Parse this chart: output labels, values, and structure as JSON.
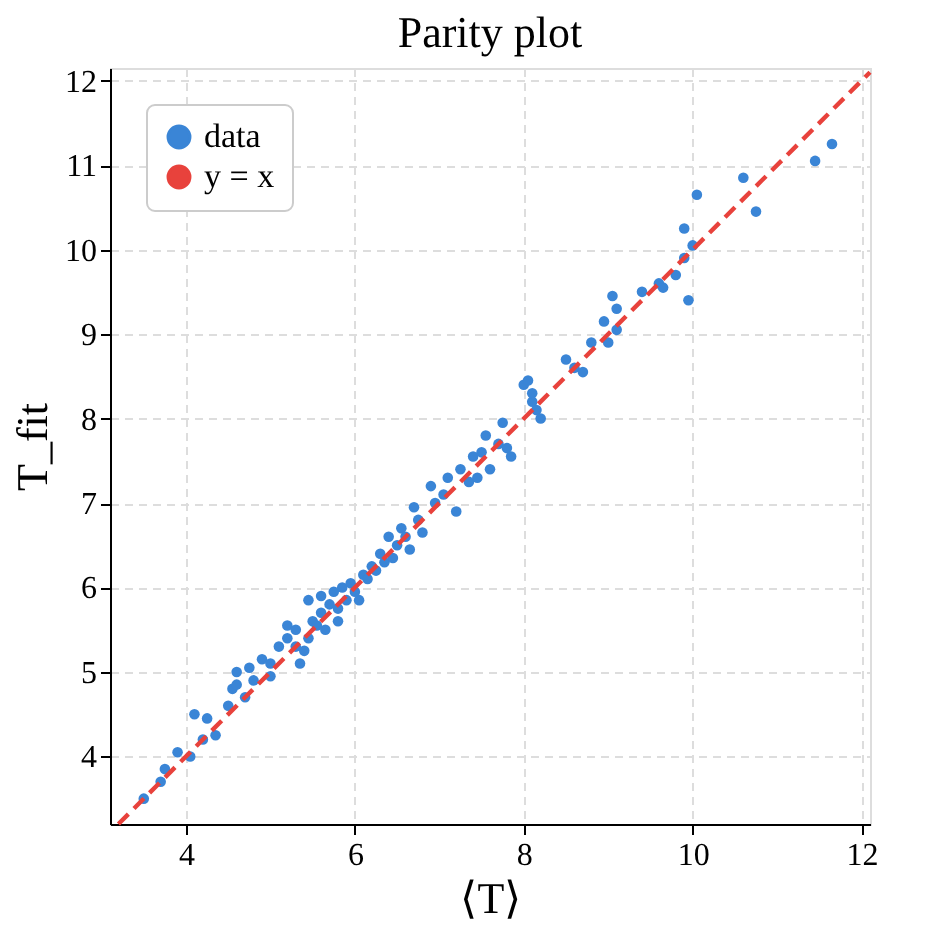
{
  "chart_data": {
    "type": "scatter",
    "title": "Parity plot",
    "xlabel": "⟨T⟩",
    "ylabel": "T_fit",
    "xlim": [
      3.1,
      12.1
    ],
    "ylim": [
      3.2,
      12.15
    ],
    "xticks": [
      4,
      6,
      8,
      10,
      12
    ],
    "yticks": [
      4,
      5,
      6,
      7,
      8,
      9,
      10,
      11,
      12
    ],
    "grid": true,
    "legend": "top left",
    "series": [
      {
        "name": "data",
        "marker": "circle",
        "color": "#3a85d6",
        "x": [
          3.5,
          3.7,
          3.75,
          3.9,
          4.05,
          4.1,
          4.25,
          4.2,
          4.35,
          4.5,
          4.55,
          4.6,
          4.7,
          4.75,
          4.6,
          4.8,
          4.9,
          5.0,
          5.0,
          5.1,
          5.2,
          5.2,
          5.3,
          5.3,
          5.35,
          5.4,
          5.45,
          5.45,
          5.5,
          5.55,
          5.6,
          5.6,
          5.65,
          5.7,
          5.75,
          5.8,
          5.8,
          5.85,
          5.9,
          5.95,
          6.0,
          6.05,
          6.1,
          6.15,
          6.2,
          6.25,
          6.3,
          6.35,
          6.4,
          6.45,
          6.5,
          6.55,
          6.6,
          6.65,
          6.7,
          6.75,
          6.8,
          6.9,
          6.95,
          7.05,
          7.1,
          7.2,
          7.25,
          7.35,
          7.4,
          7.45,
          7.5,
          7.55,
          7.6,
          7.7,
          7.75,
          7.8,
          7.85,
          8.0,
          8.05,
          8.1,
          8.15,
          8.2,
          8.1,
          8.5,
          8.6,
          8.7,
          8.8,
          8.95,
          9.0,
          9.05,
          9.1,
          9.1,
          9.4,
          9.6,
          9.65,
          9.8,
          9.9,
          9.95,
          10.0,
          9.9,
          10.05,
          10.6,
          10.75,
          11.45,
          11.65
        ],
        "values": [
          3.5,
          3.7,
          3.85,
          4.05,
          4.0,
          4.5,
          4.45,
          4.2,
          4.25,
          4.6,
          4.8,
          4.85,
          4.7,
          5.05,
          5.0,
          4.9,
          5.15,
          5.1,
          4.95,
          5.3,
          5.55,
          5.4,
          5.3,
          5.5,
          5.1,
          5.25,
          5.4,
          5.85,
          5.6,
          5.55,
          5.7,
          5.9,
          5.5,
          5.8,
          5.95,
          5.6,
          5.75,
          6.0,
          5.85,
          6.05,
          5.95,
          5.85,
          6.15,
          6.1,
          6.25,
          6.2,
          6.4,
          6.3,
          6.6,
          6.35,
          6.5,
          6.7,
          6.6,
          6.45,
          6.95,
          6.8,
          6.65,
          7.2,
          7.0,
          7.1,
          7.3,
          6.9,
          7.4,
          7.25,
          7.55,
          7.3,
          7.6,
          7.8,
          7.4,
          7.7,
          7.95,
          7.65,
          7.55,
          8.4,
          8.45,
          8.2,
          8.1,
          8.0,
          8.3,
          8.7,
          8.6,
          8.55,
          8.9,
          9.15,
          8.9,
          9.45,
          9.3,
          9.05,
          9.5,
          9.6,
          9.55,
          9.7,
          9.9,
          9.4,
          10.05,
          10.25,
          10.65,
          10.85,
          10.45,
          11.05,
          11.25
        ]
      },
      {
        "name": "y = x",
        "type": "line",
        "color": "#e8423c",
        "line_style": "dashed",
        "x": [
          3.2,
          12.1
        ],
        "values": [
          3.2,
          12.1
        ]
      }
    ]
  }
}
